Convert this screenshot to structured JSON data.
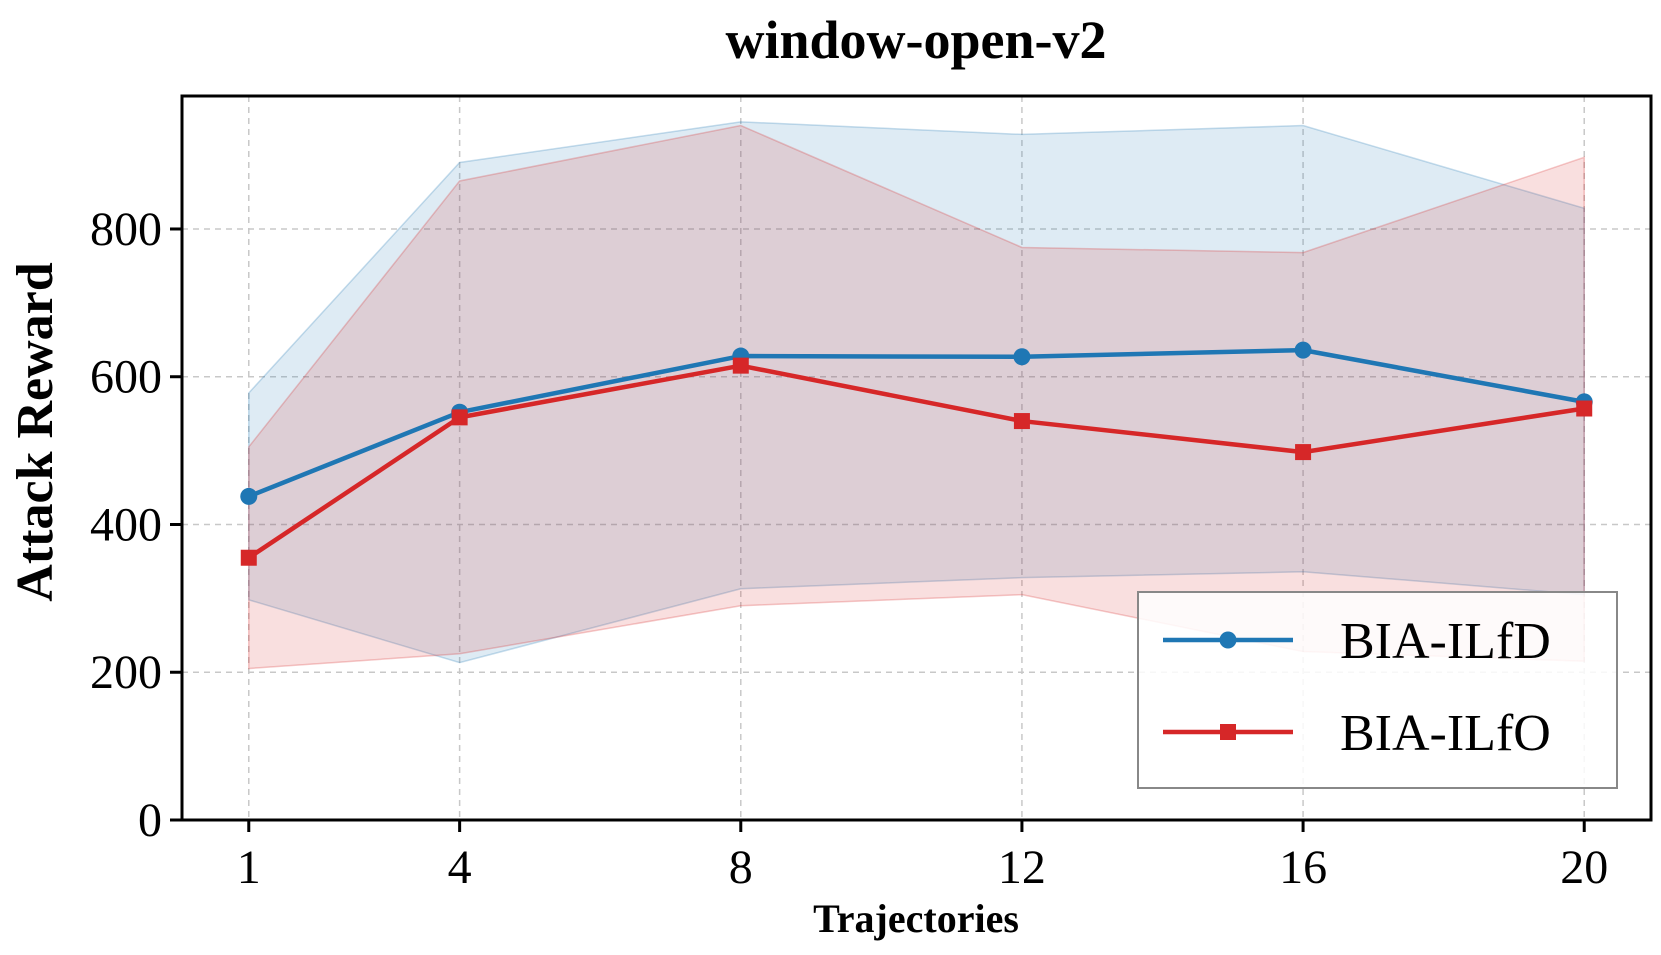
{
  "chart_data": {
    "type": "line",
    "title": "window-open-v2",
    "xlabel": "Trajectories",
    "ylabel": "Attack Reward",
    "x": [
      1,
      4,
      8,
      12,
      16,
      20
    ],
    "x_tick_labels": [
      "1",
      "4",
      "8",
      "12",
      "16",
      "20"
    ],
    "xlim": [
      0.05,
      20.95
    ],
    "ylim": [
      0,
      980
    ],
    "y_ticks": [
      0,
      200,
      400,
      600,
      800
    ],
    "y_tick_labels": [
      "0",
      "200",
      "400",
      "600",
      "800"
    ],
    "grid": true,
    "legend_position": "lower-right",
    "series": [
      {
        "name": "BIA-ILfD",
        "color": "#1f77b4",
        "marker": "circle",
        "values": [
          438,
          552,
          628,
          627,
          636,
          566
        ],
        "upper": [
          578,
          890,
          945,
          928,
          940,
          828
        ],
        "lower": [
          298,
          213,
          313,
          328,
          336,
          305
        ]
      },
      {
        "name": "BIA-ILfO",
        "color": "#d62728",
        "marker": "square",
        "values": [
          355,
          545,
          615,
          540,
          498,
          557
        ],
        "upper": [
          505,
          865,
          940,
          775,
          768,
          897
        ],
        "lower": [
          205,
          225,
          290,
          305,
          228,
          215
        ]
      }
    ]
  }
}
